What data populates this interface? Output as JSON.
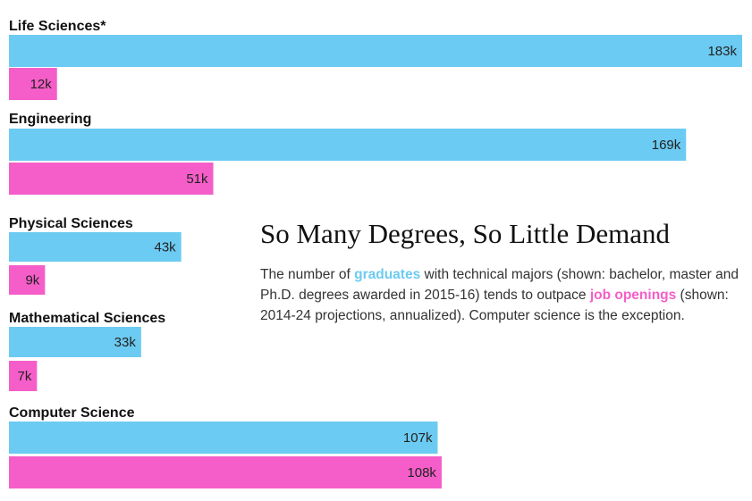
{
  "chart_data": {
    "type": "bar",
    "orientation": "horizontal",
    "title": "So Many Degrees, So Little Demand",
    "subtitle": {
      "part1": "The number of ",
      "keyword1": "graduates",
      "part2": " with technical majors (shown: bachelor, master and Ph.D. degrees awarded in 2015-16) tends to outpace ",
      "keyword2": "job openings",
      "part3": " (shown: 2014-24 projections, annualized). Computer science is the exception."
    },
    "categories": [
      "Life Sciences*",
      "Engineering",
      "Physical Sciences",
      "Mathematical Sciences",
      "Computer Science"
    ],
    "series": [
      {
        "name": "graduates",
        "color": "#6ccbf2",
        "values": [
          183,
          169,
          43,
          33,
          107
        ],
        "labels": [
          "183k",
          "169k",
          "43k",
          "33k",
          "107k"
        ]
      },
      {
        "name": "job openings",
        "color": "#f55ec8",
        "values": [
          12,
          51,
          9,
          7,
          108
        ],
        "labels": [
          "12k",
          "51k",
          "9k",
          "7k",
          "108k"
        ]
      }
    ],
    "value_unit": "k",
    "xlim": [
      0,
      183
    ],
    "grid": false,
    "legend": "inline in subtitle text"
  }
}
